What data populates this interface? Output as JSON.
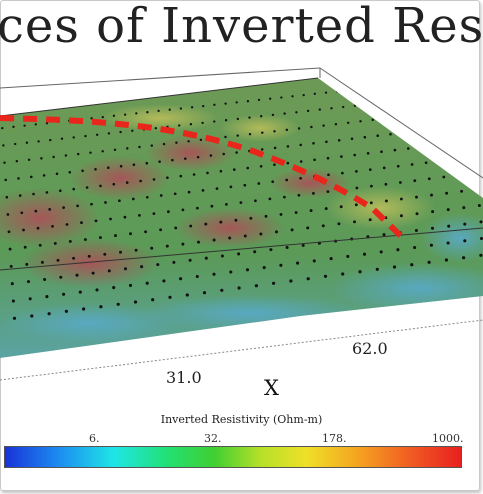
{
  "title": "ces of Inverted Resis",
  "axis": {
    "x_letter": "X",
    "x_ticks": [
      "31.0",
      "62.0"
    ]
  },
  "legend": {
    "title": "Inverted Resistivity (Ohm-m)",
    "ticks": [
      "6.",
      "32.",
      "178.",
      "1000."
    ]
  },
  "colors": {
    "dashed_line": "#e8261c",
    "surface_green": "#4c9c4a",
    "surface_red": "#b5555a",
    "surface_blue": "#57a7c8"
  }
}
